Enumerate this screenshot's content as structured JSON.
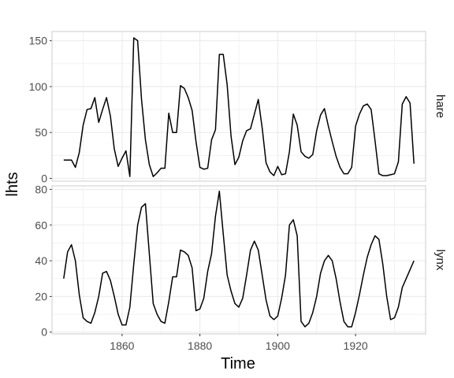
{
  "chart_data": {
    "type": "line",
    "xlabel": "Time",
    "ylabel": "lhts",
    "x_ticks": [
      1860,
      1880,
      1900,
      1920
    ],
    "xlim": [
      1842,
      1938
    ],
    "grid": true,
    "line_color": "#000000",
    "grid_color": "#ebebeb",
    "border_color": "#cccccc",
    "facets": [
      {
        "name": "hare",
        "ylim": [
          -3,
          160
        ],
        "y_ticks": [
          0,
          50,
          100,
          150
        ],
        "x": [
          1845,
          1846,
          1847,
          1848,
          1849,
          1850,
          1851,
          1852,
          1853,
          1854,
          1855,
          1856,
          1857,
          1858,
          1859,
          1860,
          1861,
          1862,
          1863,
          1864,
          1865,
          1866,
          1867,
          1868,
          1869,
          1870,
          1871,
          1872,
          1873,
          1874,
          1875,
          1876,
          1877,
          1878,
          1879,
          1880,
          1881,
          1882,
          1883,
          1884,
          1885,
          1886,
          1887,
          1888,
          1889,
          1890,
          1891,
          1892,
          1893,
          1894,
          1895,
          1896,
          1897,
          1898,
          1899,
          1900,
          1901,
          1902,
          1903,
          1904,
          1905,
          1906,
          1907,
          1908,
          1909,
          1910,
          1911,
          1912,
          1913,
          1914,
          1915,
          1916,
          1917,
          1918,
          1919,
          1920,
          1921,
          1922,
          1923,
          1924,
          1925,
          1926,
          1927,
          1928,
          1929,
          1930,
          1931,
          1932,
          1933,
          1934,
          1935
        ],
        "values": [
          20,
          20,
          20,
          12,
          28,
          58,
          75,
          76,
          88,
          61,
          75,
          88,
          68,
          32,
          13,
          22,
          30,
          2,
          153,
          150,
          86,
          42,
          15,
          2,
          6,
          11,
          11,
          71,
          50,
          50,
          101,
          98,
          88,
          74,
          40,
          12,
          10,
          11,
          42,
          53,
          135,
          135,
          102,
          46,
          15,
          23,
          41,
          52,
          54,
          70,
          86,
          55,
          17,
          7,
          3,
          13,
          4,
          5,
          29,
          70,
          58,
          29,
          24,
          22,
          26,
          52,
          69,
          76,
          57,
          40,
          24,
          12,
          5,
          5,
          12,
          57,
          70,
          79,
          81,
          75,
          41,
          5,
          3,
          3,
          4,
          5,
          18,
          81,
          89,
          82,
          16
        ]
      },
      {
        "name": "lynx",
        "ylim": [
          -1,
          82
        ],
        "y_ticks": [
          0,
          20,
          40,
          60,
          80
        ],
        "x": [
          1845,
          1846,
          1847,
          1848,
          1849,
          1850,
          1851,
          1852,
          1853,
          1854,
          1855,
          1856,
          1857,
          1858,
          1859,
          1860,
          1861,
          1862,
          1863,
          1864,
          1865,
          1866,
          1867,
          1868,
          1869,
          1870,
          1871,
          1872,
          1873,
          1874,
          1875,
          1876,
          1877,
          1878,
          1879,
          1880,
          1881,
          1882,
          1883,
          1884,
          1885,
          1886,
          1887,
          1888,
          1889,
          1890,
          1891,
          1892,
          1893,
          1894,
          1895,
          1896,
          1897,
          1898,
          1899,
          1900,
          1901,
          1902,
          1903,
          1904,
          1905,
          1906,
          1907,
          1908,
          1909,
          1910,
          1911,
          1912,
          1913,
          1914,
          1915,
          1916,
          1917,
          1918,
          1919,
          1920,
          1921,
          1922,
          1923,
          1924,
          1925,
          1926,
          1927,
          1928,
          1929,
          1930,
          1931,
          1932,
          1933,
          1934,
          1935
        ],
        "values": [
          30,
          45,
          49,
          40,
          21,
          8,
          6,
          5,
          11,
          20,
          33,
          34,
          29,
          20,
          10,
          4,
          4,
          14,
          38,
          60,
          70,
          72,
          44,
          16,
          10,
          6,
          5,
          17,
          31,
          31,
          46,
          45,
          43,
          36,
          12,
          13,
          19,
          34,
          44,
          65,
          79,
          55,
          32,
          23,
          16,
          14,
          19,
          32,
          46,
          51,
          46,
          32,
          18,
          9,
          7,
          9,
          19,
          32,
          60,
          63,
          54,
          6,
          3,
          5,
          11,
          20,
          33,
          40,
          43,
          40,
          30,
          17,
          6,
          3,
          3,
          11,
          21,
          32,
          42,
          49,
          54,
          52,
          38,
          20,
          7,
          8,
          14,
          25,
          30,
          35,
          40
        ]
      }
    ]
  }
}
